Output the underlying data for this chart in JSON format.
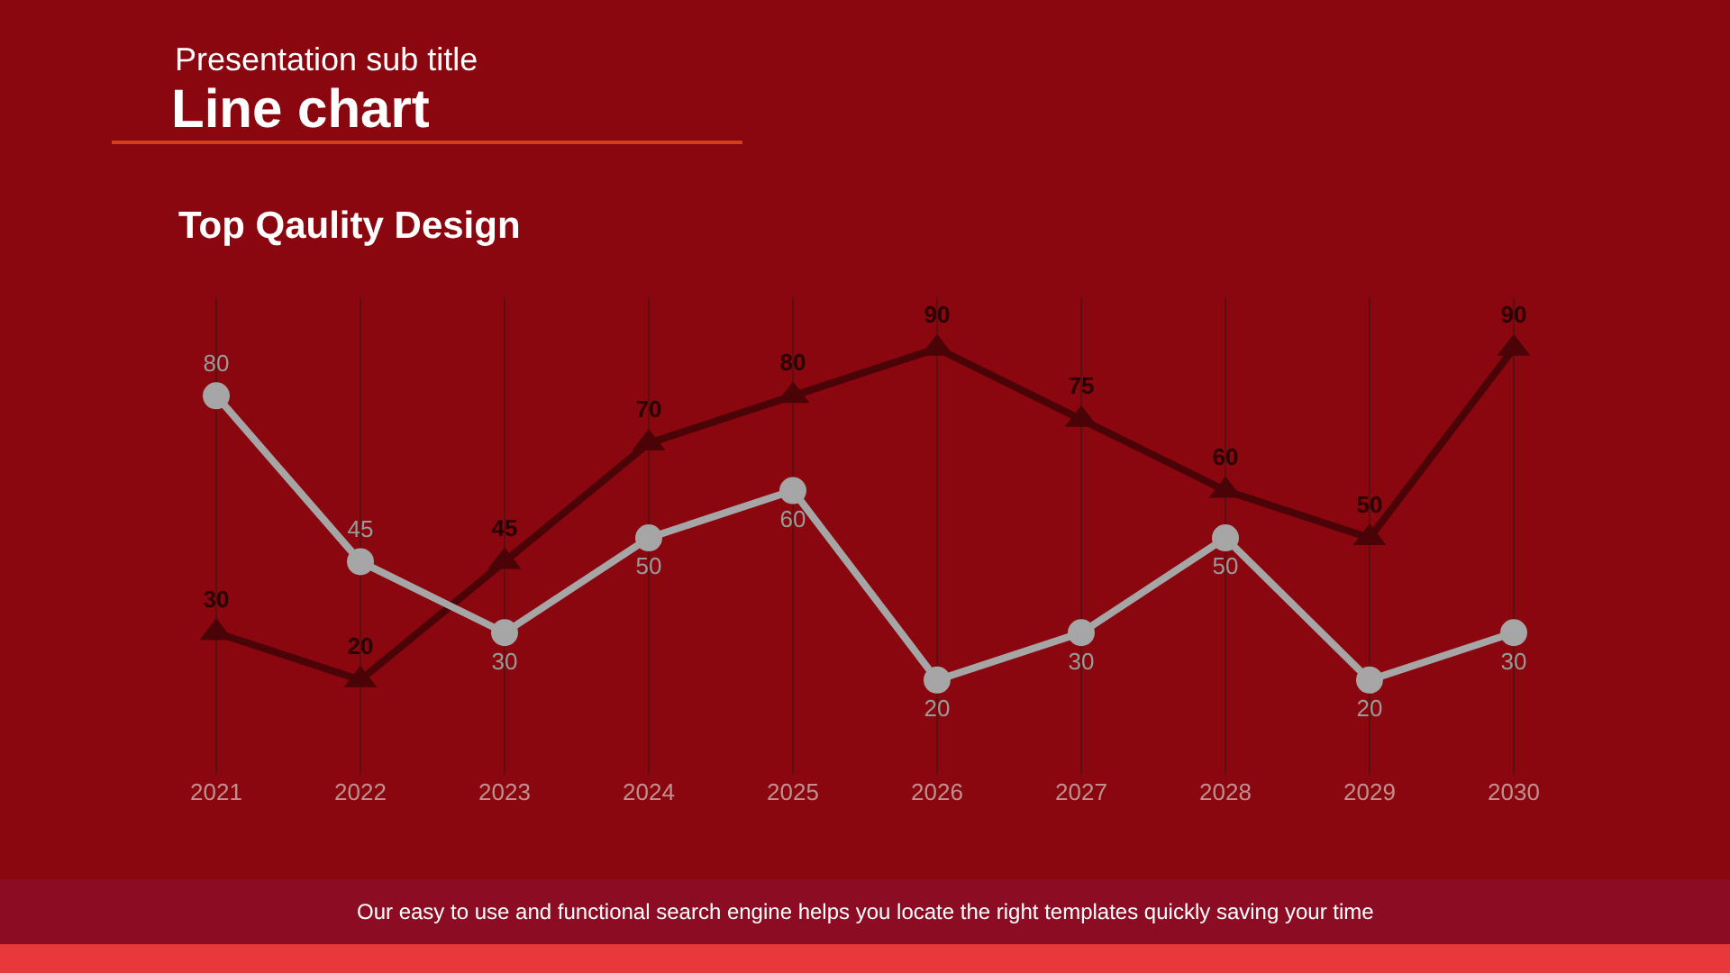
{
  "chart_data": {
    "type": "line",
    "title": "Line chart",
    "subtitle": "Presentation sub title",
    "annotations": [
      "Top Qaulity Design",
      "Our easy to use and functional search engine helps you locate the right templates quickly saving your time"
    ],
    "categories": [
      "2021",
      "2022",
      "2023",
      "2024",
      "2025",
      "2026",
      "2027",
      "2028",
      "2029",
      "2030"
    ],
    "series": [
      {
        "color": "#4a0306",
        "marker": "triangle",
        "values": [
          30,
          20,
          45,
          70,
          80,
          90,
          75,
          60,
          50,
          90
        ]
      },
      {
        "color": "#a6a6a6",
        "marker": "circle",
        "values": [
          80,
          45,
          30,
          50,
          60,
          20,
          30,
          50,
          20,
          30
        ]
      }
    ],
    "data_labels": true,
    "grid": "x",
    "legend": false,
    "line_style": "solid"
  }
}
